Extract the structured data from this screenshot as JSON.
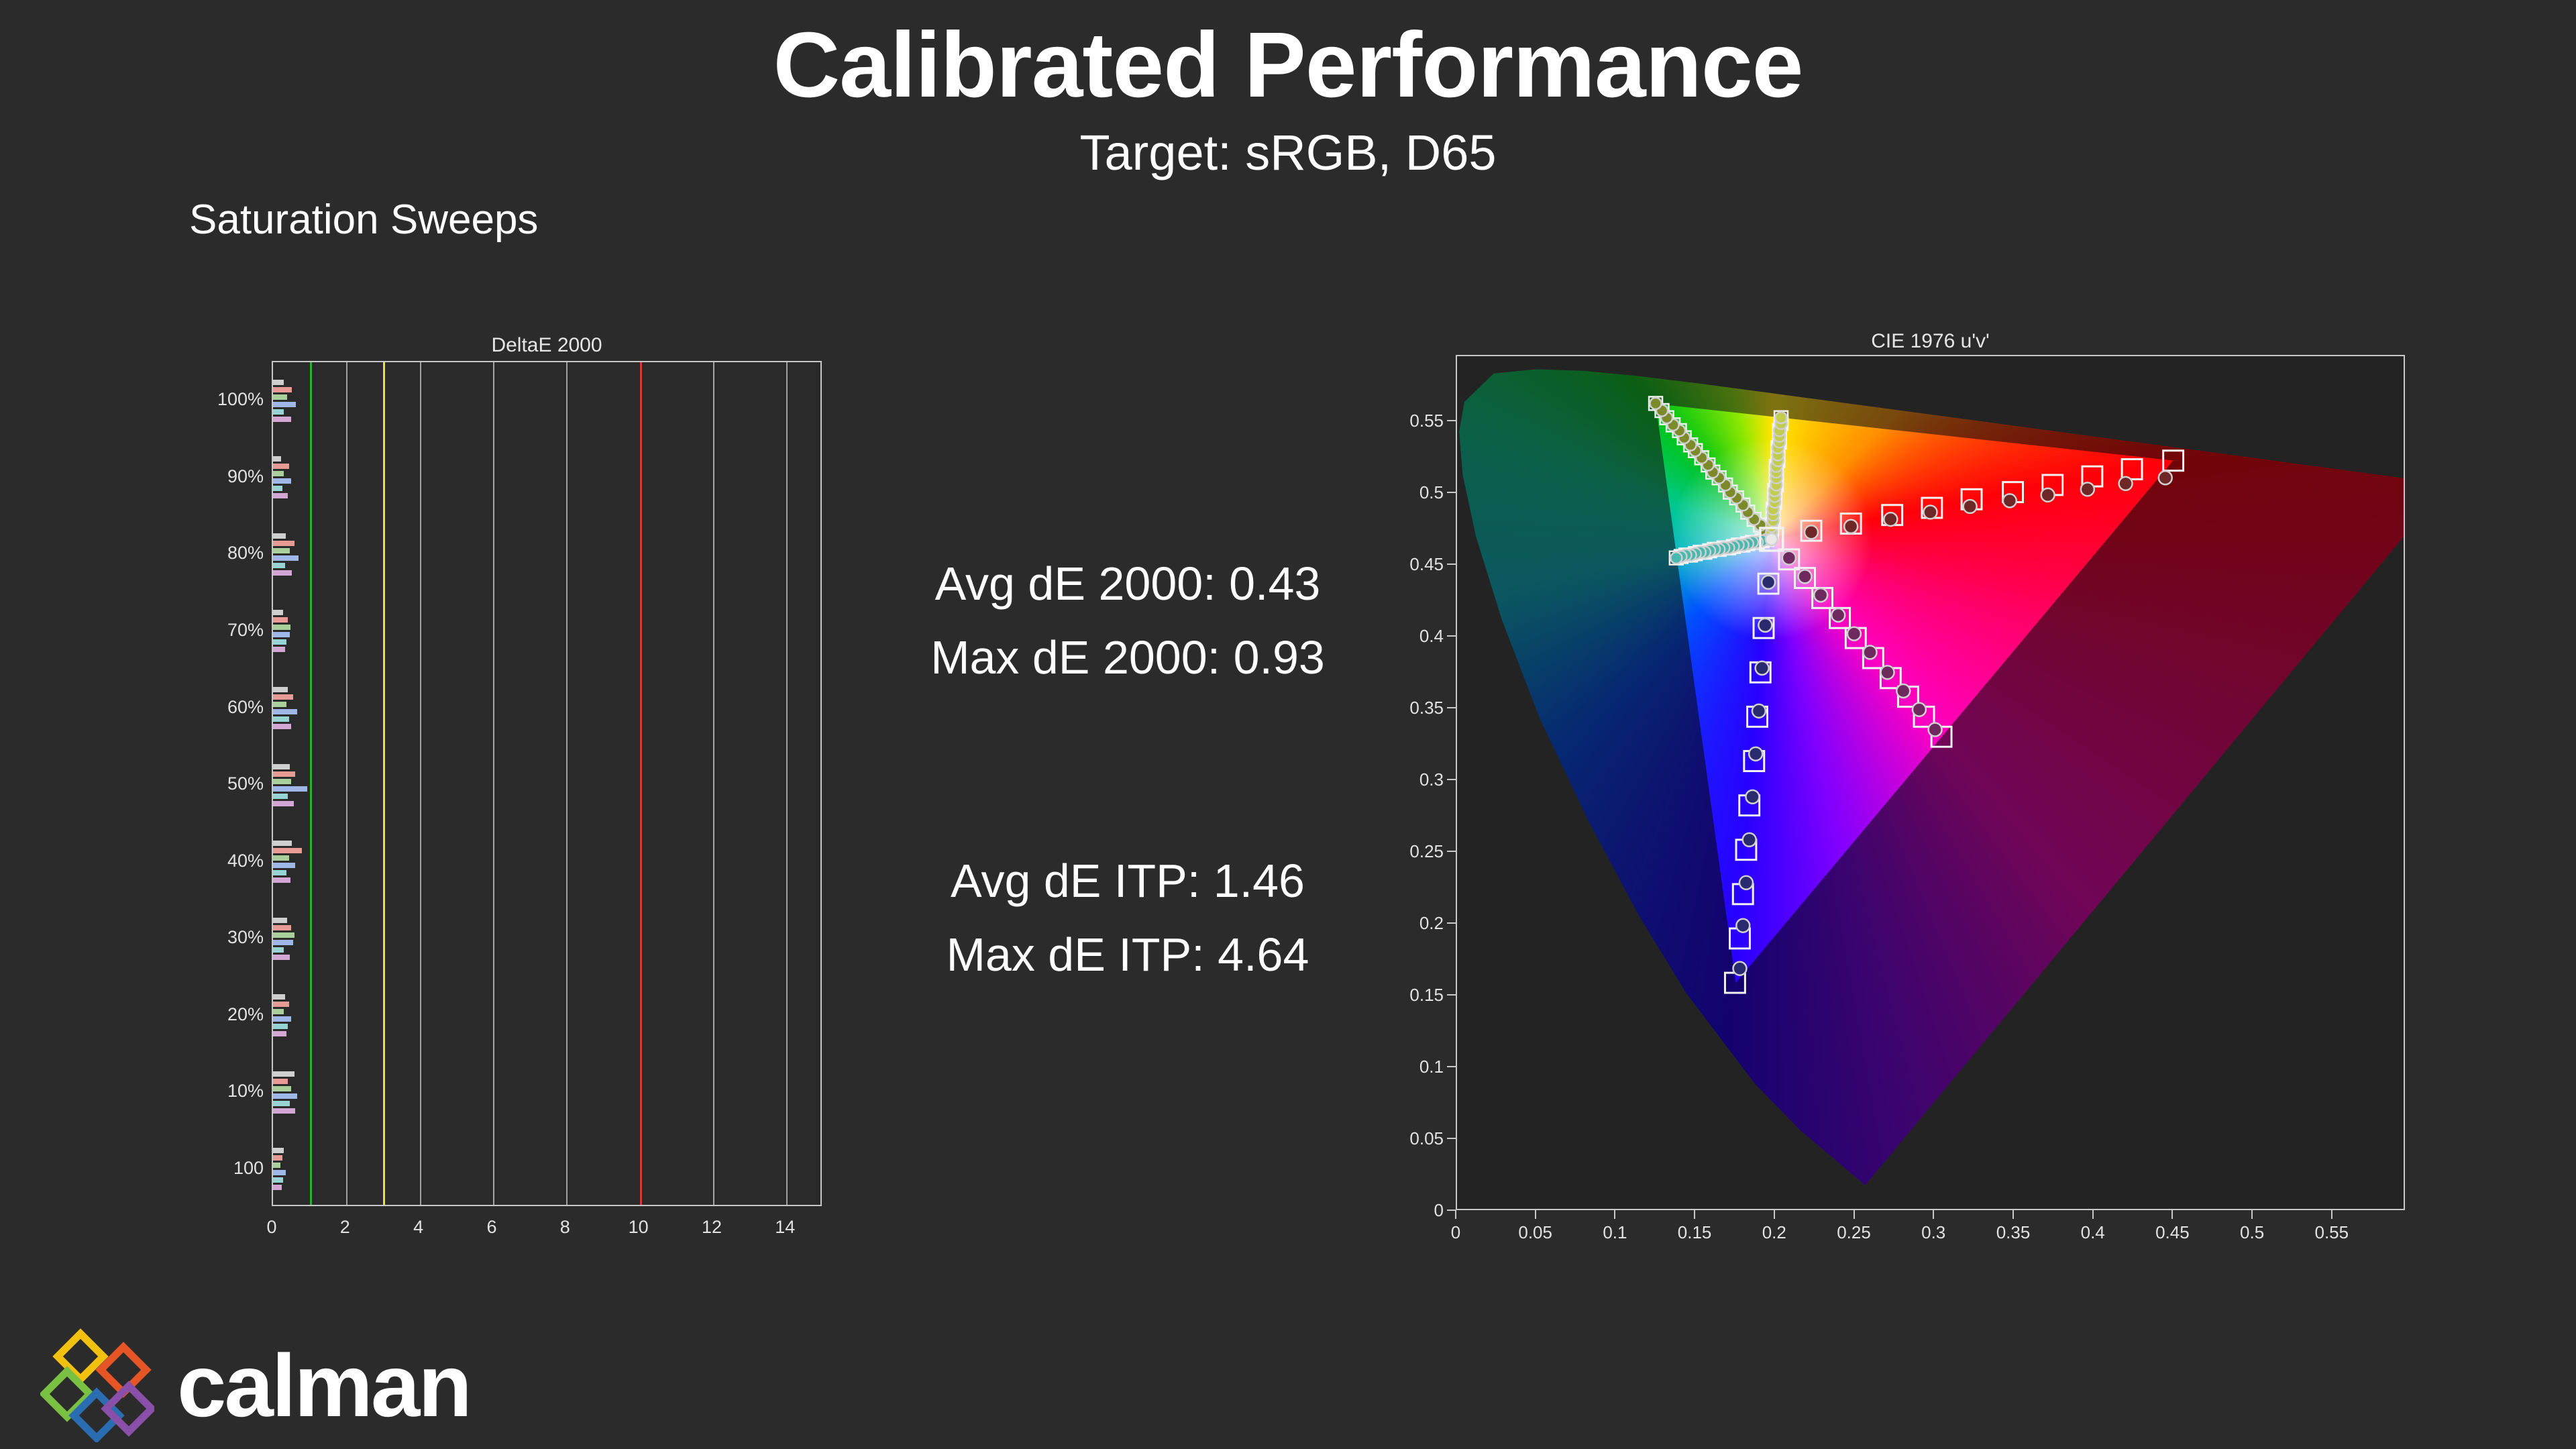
{
  "page": {
    "background": "#2b2b2b"
  },
  "header": {
    "title": "Calibrated Performance",
    "subtitle": "Target: sRGB, D65"
  },
  "section_label": "Saturation Sweeps",
  "stats": {
    "avg_de2000": "Avg dE 2000: 0.43",
    "max_de2000": "Max dE 2000: 0.93",
    "avg_de_itp": "Avg dE ITP: 1.46",
    "max_de_itp": "Max dE ITP: 4.64"
  },
  "logo": {
    "text": "calman"
  },
  "chart_data": [
    {
      "type": "bar",
      "title": "DeltaE 2000",
      "orientation": "horizontal",
      "categories": [
        "100%",
        "90%",
        "80%",
        "70%",
        "60%",
        "50%",
        "40%",
        "30%",
        "20%",
        "10%",
        "100"
      ],
      "xlim": [
        0,
        15
      ],
      "x_ticks": [
        0,
        2,
        4,
        6,
        8,
        10,
        12,
        14
      ],
      "grid": true,
      "reference_lines": [
        {
          "name": "green",
          "value": 1,
          "color": "#2fae2f"
        },
        {
          "name": "yellow",
          "value": 3,
          "color": "#e6e62e"
        },
        {
          "name": "red",
          "value": 10,
          "color": "#d43a3a"
        }
      ],
      "series": [
        {
          "name": "white",
          "color": "#cfcfcf",
          "values": [
            0.3,
            0.22,
            0.35,
            0.28,
            0.4,
            0.45,
            0.52,
            0.38,
            0.33,
            0.58,
            0.3
          ]
        },
        {
          "name": "red",
          "color": "#e89a94",
          "values": [
            0.52,
            0.44,
            0.58,
            0.4,
            0.55,
            0.6,
            0.78,
            0.5,
            0.43,
            0.4,
            0.25
          ]
        },
        {
          "name": "green",
          "color": "#a9cf9b",
          "values": [
            0.38,
            0.3,
            0.46,
            0.48,
            0.36,
            0.5,
            0.44,
            0.58,
            0.3,
            0.5,
            0.2
          ]
        },
        {
          "name": "blue",
          "color": "#9fb6e8",
          "values": [
            0.62,
            0.5,
            0.7,
            0.46,
            0.66,
            0.93,
            0.6,
            0.55,
            0.5,
            0.66,
            0.35
          ]
        },
        {
          "name": "cyan",
          "color": "#98d3d3",
          "values": [
            0.3,
            0.26,
            0.32,
            0.36,
            0.44,
            0.4,
            0.36,
            0.3,
            0.4,
            0.46,
            0.28
          ]
        },
        {
          "name": "magenta",
          "color": "#d3a6d3",
          "values": [
            0.5,
            0.4,
            0.52,
            0.32,
            0.5,
            0.56,
            0.48,
            0.46,
            0.36,
            0.6,
            0.24
          ]
        }
      ]
    },
    {
      "type": "scatter",
      "title": "CIE 1976 u'v'",
      "xlim": [
        0,
        0.596
      ],
      "ylim": [
        0,
        0.596
      ],
      "x_ticks": [
        {
          "value": 0,
          "label": "0"
        },
        {
          "value": 0.05,
          "label": "0.05"
        },
        {
          "value": 0.1,
          "label": "0.1"
        },
        {
          "value": 0.15,
          "label": "0.15"
        },
        {
          "value": 0.2,
          "label": "0.2"
        },
        {
          "value": 0.25,
          "label": "0.25"
        },
        {
          "value": 0.3,
          "label": "0.3"
        },
        {
          "value": 0.35,
          "label": "0.35"
        },
        {
          "value": 0.4,
          "label": "0.4"
        },
        {
          "value": 0.45,
          "label": "0.45"
        },
        {
          "value": 0.5,
          "label": "0.5"
        },
        {
          "value": 0.55,
          "label": "0.55"
        }
      ],
      "y_ticks": [
        {
          "value": 0,
          "label": "0"
        },
        {
          "value": 0.05,
          "label": "0.05"
        },
        {
          "value": 0.1,
          "label": "0.1"
        },
        {
          "value": 0.15,
          "label": "0.15"
        },
        {
          "value": 0.2,
          "label": "0.2"
        },
        {
          "value": 0.25,
          "label": "0.25"
        },
        {
          "value": 0.3,
          "label": "0.3"
        },
        {
          "value": 0.35,
          "label": "0.35"
        },
        {
          "value": 0.4,
          "label": "0.4"
        },
        {
          "value": 0.45,
          "label": "0.45"
        },
        {
          "value": 0.5,
          "label": "0.5"
        },
        {
          "value": 0.55,
          "label": "0.55"
        }
      ],
      "gamut": "sRGB",
      "white_point": [
        0.198,
        0.468
      ],
      "triangle": [
        [
          0.451,
          0.523
        ],
        [
          0.125,
          0.563
        ],
        [
          0.175,
          0.158
        ]
      ],
      "sweeps": [
        {
          "name": "red",
          "step": 10,
          "marker_color": "#6e2626",
          "targets": [
            [
              0.223,
              0.474
            ],
            [
              0.248,
              0.479
            ],
            [
              0.274,
              0.485
            ],
            [
              0.299,
              0.49
            ],
            [
              0.324,
              0.496
            ],
            [
              0.35,
              0.501
            ],
            [
              0.375,
              0.506
            ],
            [
              0.4,
              0.512
            ],
            [
              0.425,
              0.517
            ],
            [
              0.451,
              0.523
            ]
          ],
          "measured": [
            [
              0.223,
              0.473
            ],
            [
              0.248,
              0.477
            ],
            [
              0.273,
              0.482
            ],
            [
              0.298,
              0.487
            ],
            [
              0.323,
              0.491
            ],
            [
              0.348,
              0.495
            ],
            [
              0.372,
              0.499
            ],
            [
              0.397,
              0.503
            ],
            [
              0.421,
              0.507
            ],
            [
              0.446,
              0.511
            ]
          ]
        },
        {
          "name": "green",
          "step": 5,
          "marker_color": "#7c8a2a",
          "targets": [
            [
              0.194,
              0.473
            ],
            [
              0.191,
              0.478
            ],
            [
              0.187,
              0.482
            ],
            [
              0.183,
              0.487
            ],
            [
              0.18,
              0.492
            ],
            [
              0.176,
              0.497
            ],
            [
              0.172,
              0.501
            ],
            [
              0.169,
              0.506
            ],
            [
              0.165,
              0.511
            ],
            [
              0.161,
              0.515
            ],
            [
              0.158,
              0.52
            ],
            [
              0.154,
              0.525
            ],
            [
              0.15,
              0.53
            ],
            [
              0.147,
              0.534
            ],
            [
              0.143,
              0.539
            ],
            [
              0.14,
              0.544
            ],
            [
              0.136,
              0.548
            ],
            [
              0.132,
              0.553
            ],
            [
              0.129,
              0.558
            ],
            [
              0.125,
              0.563
            ]
          ]
        },
        {
          "name": "blue",
          "step": 10,
          "marker_color": "#2a2a6e",
          "targets": [
            [
              0.196,
              0.437
            ],
            [
              0.193,
              0.406
            ],
            [
              0.191,
              0.375
            ],
            [
              0.189,
              0.344
            ],
            [
              0.187,
              0.313
            ],
            [
              0.184,
              0.282
            ],
            [
              0.182,
              0.251
            ],
            [
              0.18,
              0.22
            ],
            [
              0.178,
              0.189
            ],
            [
              0.175,
              0.158
            ]
          ],
          "measured": [
            [
              0.196,
              0.438
            ],
            [
              0.194,
              0.408
            ],
            [
              0.192,
              0.378
            ],
            [
              0.19,
              0.348
            ],
            [
              0.188,
              0.318
            ],
            [
              0.186,
              0.288
            ],
            [
              0.184,
              0.258
            ],
            [
              0.182,
              0.228
            ],
            [
              0.18,
              0.198
            ],
            [
              0.178,
              0.168
            ]
          ]
        },
        {
          "name": "cyan",
          "step": 5,
          "marker_color": "#49b8ae",
          "targets": [
            [
              0.195,
              0.468
            ],
            [
              0.192,
              0.467
            ],
            [
              0.189,
              0.466
            ],
            [
              0.186,
              0.466
            ],
            [
              0.183,
              0.465
            ],
            [
              0.18,
              0.464
            ],
            [
              0.177,
              0.464
            ],
            [
              0.174,
              0.463
            ],
            [
              0.171,
              0.462
            ],
            [
              0.168,
              0.462
            ],
            [
              0.165,
              0.461
            ],
            [
              0.162,
              0.461
            ],
            [
              0.159,
              0.46
            ],
            [
              0.156,
              0.459
            ],
            [
              0.153,
              0.459
            ],
            [
              0.15,
              0.458
            ],
            [
              0.147,
              0.457
            ],
            [
              0.144,
              0.457
            ],
            [
              0.141,
              0.456
            ],
            [
              0.138,
              0.455
            ]
          ]
        },
        {
          "name": "magenta",
          "step": 10,
          "marker_color": "#6e2a5e",
          "targets": [
            [
              0.209,
              0.454
            ],
            [
              0.219,
              0.441
            ],
            [
              0.23,
              0.427
            ],
            [
              0.241,
              0.413
            ],
            [
              0.251,
              0.399
            ],
            [
              0.262,
              0.385
            ],
            [
              0.273,
              0.371
            ],
            [
              0.284,
              0.358
            ],
            [
              0.294,
              0.344
            ],
            [
              0.305,
              0.33
            ]
          ],
          "measured": [
            [
              0.209,
              0.455
            ],
            [
              0.219,
              0.442
            ],
            [
              0.229,
              0.429
            ],
            [
              0.24,
              0.415
            ],
            [
              0.25,
              0.402
            ],
            [
              0.26,
              0.389
            ],
            [
              0.271,
              0.375
            ],
            [
              0.281,
              0.362
            ],
            [
              0.291,
              0.349
            ],
            [
              0.301,
              0.335
            ]
          ]
        },
        {
          "name": "yellow",
          "step": 5,
          "marker_color": "#c2cc4e",
          "targets": [
            [
              0.198,
              0.473
            ],
            [
              0.198,
              0.477
            ],
            [
              0.199,
              0.481
            ],
            [
              0.199,
              0.485
            ],
            [
              0.199,
              0.489
            ],
            [
              0.2,
              0.494
            ],
            [
              0.2,
              0.498
            ],
            [
              0.2,
              0.502
            ],
            [
              0.201,
              0.506
            ],
            [
              0.201,
              0.511
            ],
            [
              0.201,
              0.515
            ],
            [
              0.201,
              0.519
            ],
            [
              0.202,
              0.523
            ],
            [
              0.202,
              0.527
            ],
            [
              0.202,
              0.532
            ],
            [
              0.203,
              0.536
            ],
            [
              0.203,
              0.54
            ],
            [
              0.203,
              0.544
            ],
            [
              0.204,
              0.549
            ],
            [
              0.204,
              0.553
            ]
          ]
        }
      ]
    }
  ]
}
